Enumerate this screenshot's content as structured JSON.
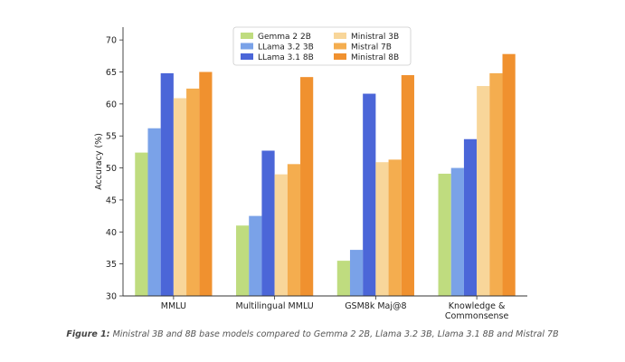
{
  "chart_data": {
    "type": "bar",
    "title": "",
    "xlabel": "",
    "ylabel": "Accuracy (%)",
    "ylim": [
      30,
      72
    ],
    "yticks": [
      30,
      35,
      40,
      45,
      50,
      55,
      60,
      65,
      70
    ],
    "grid": false,
    "legend_position": "top-center",
    "categories": [
      [
        "MMLU"
      ],
      [
        "Multilingual MMLU"
      ],
      [
        "GSM8k Maj@8"
      ],
      [
        "Knowledge &",
        "Commonsense"
      ]
    ],
    "series": [
      {
        "name": "Gemma 2 2B",
        "color": "#bfdc7f",
        "values": [
          52.4,
          41.0,
          35.5,
          49.1
        ]
      },
      {
        "name": "LLama 3.2 3B",
        "color": "#7aa2e8",
        "values": [
          56.2,
          42.5,
          37.2,
          50.0
        ]
      },
      {
        "name": "LLama 3.1 8B",
        "color": "#4b66d8",
        "values": [
          64.8,
          52.7,
          61.6,
          54.5
        ]
      },
      {
        "name": "Ministral 3B",
        "color": "#f8d69a",
        "values": [
          60.9,
          49.0,
          50.9,
          62.8
        ]
      },
      {
        "name": "Mistral 7B",
        "color": "#f4ad4f",
        "values": [
          62.4,
          50.6,
          51.3,
          64.8
        ]
      },
      {
        "name": "Ministral 8B",
        "color": "#f0912f",
        "values": [
          65.0,
          64.2,
          64.5,
          67.8
        ]
      }
    ]
  },
  "caption": {
    "lead": "Figure 1:",
    "text": " Ministral 3B and 8B base models compared to Gemma 2 2B, Llama 3.2 3B, Llama 3.1 8B and Mistral 7B"
  }
}
